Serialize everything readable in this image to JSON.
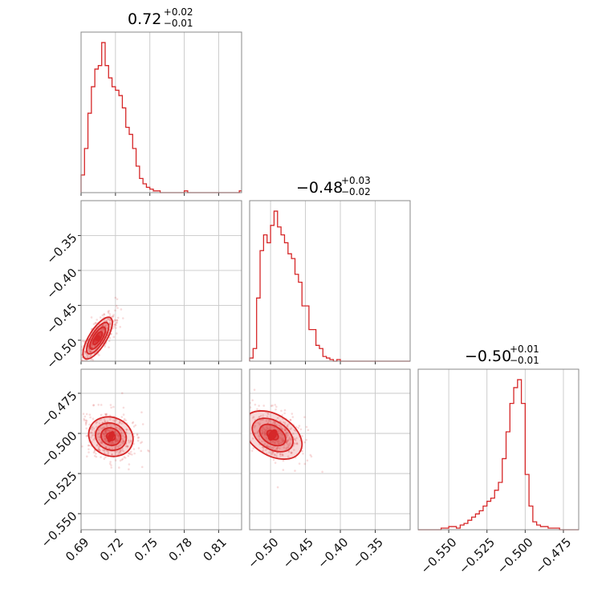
{
  "chart_data": {
    "type": "corner",
    "color": "#d62728",
    "grid": true,
    "parameters": [
      {
        "title": {
          "value": "0.72",
          "plus": "+0.02",
          "minus": "−0.01"
        },
        "range": [
          0.69,
          0.83
        ],
        "ticks": [
          0.69,
          0.72,
          0.75,
          0.78,
          0.81
        ],
        "tick_labels": [
          "0.69",
          "0.72",
          "0.75",
          "0.78",
          "0.81"
        ]
      },
      {
        "title": {
          "value": "−0.48",
          "plus": "+0.03",
          "minus": "−0.02"
        },
        "range": [
          -0.53,
          -0.3
        ],
        "ticks": [
          -0.5,
          -0.45,
          -0.4,
          -0.35
        ],
        "tick_labels": [
          "−0.50",
          "−0.45",
          "−0.40",
          "−0.35"
        ]
      },
      {
        "title": {
          "value": "−0.50",
          "plus": "+0.01",
          "minus": "−0.01"
        },
        "range": [
          -0.57,
          -0.465
        ],
        "ticks": [
          -0.55,
          -0.525,
          -0.5,
          -0.475
        ],
        "tick_labels": [
          "−0.550",
          "−0.525",
          "−0.500",
          "−0.475"
        ]
      }
    ],
    "histograms": [
      {
        "param": 0,
        "bin_edges": [
          0.69,
          0.693,
          0.696,
          0.699,
          0.702,
          0.705,
          0.708,
          0.711,
          0.714,
          0.717,
          0.72,
          0.723,
          0.726,
          0.729,
          0.732,
          0.735,
          0.738,
          0.741,
          0.744,
          0.747,
          0.75,
          0.753,
          0.756,
          0.759,
          0.762,
          0.765,
          0.768,
          0.771,
          0.774,
          0.777,
          0.78,
          0.783,
          0.786,
          0.789,
          0.792,
          0.795,
          0.798,
          0.801,
          0.804,
          0.807,
          0.81,
          0.813,
          0.816,
          0.819,
          0.822,
          0.825,
          0.828,
          0.83
        ],
        "counts": [
          10,
          25,
          45,
          60,
          70,
          72,
          85,
          72,
          65,
          60,
          58,
          55,
          48,
          37,
          33,
          25,
          15,
          8,
          5,
          3,
          2,
          1,
          1,
          0,
          0,
          0,
          0,
          0,
          0,
          0,
          1,
          0,
          0,
          0,
          0,
          0,
          0,
          0,
          0,
          0,
          0,
          0,
          0,
          0,
          0,
          0,
          1
        ]
      },
      {
        "param": 1,
        "bin_edges": [
          -0.53,
          -0.525,
          -0.52,
          -0.515,
          -0.51,
          -0.505,
          -0.5,
          -0.495,
          -0.49,
          -0.485,
          -0.48,
          -0.475,
          -0.47,
          -0.465,
          -0.46,
          -0.455,
          -0.45,
          -0.445,
          -0.44,
          -0.435,
          -0.43,
          -0.425,
          -0.42,
          -0.415,
          -0.41,
          -0.405,
          -0.4,
          -0.395,
          -0.39,
          -0.385,
          -0.38,
          -0.375,
          -0.37,
          -0.365,
          -0.36,
          -0.355,
          -0.35,
          -0.345,
          -0.34,
          -0.335,
          -0.33,
          -0.325,
          -0.32,
          -0.315,
          -0.31,
          -0.305,
          -0.3
        ],
        "counts": [
          2,
          8,
          40,
          70,
          80,
          75,
          86,
          95,
          85,
          80,
          75,
          68,
          65,
          55,
          50,
          35,
          35,
          20,
          20,
          10,
          8,
          3,
          2,
          1,
          0,
          1,
          0,
          0,
          0,
          0,
          0,
          0,
          0,
          0,
          0,
          0,
          0,
          0,
          0,
          0,
          0,
          0,
          0,
          0,
          0,
          0
        ]
      },
      {
        "param": 2,
        "bin_edges": [
          -0.57,
          -0.5675,
          -0.565,
          -0.5625,
          -0.56,
          -0.5575,
          -0.555,
          -0.5525,
          -0.55,
          -0.5475,
          -0.545,
          -0.5425,
          -0.54,
          -0.5375,
          -0.535,
          -0.5325,
          -0.53,
          -0.5275,
          -0.525,
          -0.5225,
          -0.52,
          -0.5175,
          -0.515,
          -0.5125,
          -0.51,
          -0.5075,
          -0.505,
          -0.5025,
          -0.5,
          -0.4975,
          -0.495,
          -0.4925,
          -0.49,
          -0.4875,
          -0.485,
          -0.4825,
          -0.48,
          -0.4775,
          -0.475,
          -0.4725,
          -0.47,
          -0.4675,
          -0.465
        ],
        "counts": [
          0,
          0,
          0,
          0,
          0,
          0,
          1,
          1,
          2,
          2,
          1,
          3,
          4,
          6,
          8,
          10,
          12,
          15,
          18,
          20,
          25,
          30,
          45,
          62,
          80,
          90,
          95,
          80,
          35,
          15,
          5,
          3,
          2,
          2,
          1,
          1,
          1,
          0,
          0,
          0,
          0,
          0
        ]
      }
    ],
    "pairs": [
      {
        "x_param": 0,
        "y_param": 1,
        "y_range": [
          -0.53,
          -0.3
        ],
        "y_ticks": [
          -0.5,
          -0.45,
          -0.4,
          -0.35
        ],
        "y_tick_labels": [
          "−0.50",
          "−0.45",
          "−0.40",
          "−0.35"
        ],
        "center": [
          0.7045,
          -0.497
        ],
        "axis_dir": [
          0.0193,
          0.0508
        ],
        "major_sd": 0.32,
        "minor_sd": 0.05,
        "minor_sd_y": 0.0062,
        "contour_scales": [
          0.55,
          0.95,
          1.35,
          1.8
        ],
        "scatter_sd": 2.6
      },
      {
        "x_param": 0,
        "y_param": 2,
        "y_range": [
          -0.56,
          -0.46
        ],
        "y_ticks": [
          -0.55,
          -0.525,
          -0.5,
          -0.475
        ],
        "y_tick_labels": [
          "−0.550",
          "−0.525",
          "−0.500",
          "−0.475"
        ],
        "center": [
          0.716,
          -0.502
        ],
        "axis_dir": [
          0.0155,
          -0.0048
        ],
        "major_sd": 0.65,
        "minor_sd": 0.55,
        "minor_sd_y": 0.0,
        "contour_scales": [
          0.35,
          0.8,
          1.25,
          1.8
        ],
        "scatter_sd": 2.4
      },
      {
        "x_param": 1,
        "y_param": 2,
        "y_range": [
          -0.56,
          -0.46
        ],
        "y_ticks": [
          -0.55,
          -0.525,
          -0.5,
          -0.475
        ],
        "y_tick_labels": [
          "−0.550",
          "−0.525",
          "−0.500",
          "−0.475"
        ],
        "center": [
          -0.497,
          -0.501
        ],
        "axis_dir": [
          0.0362,
          -0.0097
        ],
        "major_sd": 0.6,
        "minor_sd": 0.38,
        "minor_sd_y": 0.0,
        "contour_scales": [
          0.35,
          0.8,
          1.25,
          1.8
        ],
        "scatter_sd": 2.4
      }
    ]
  }
}
